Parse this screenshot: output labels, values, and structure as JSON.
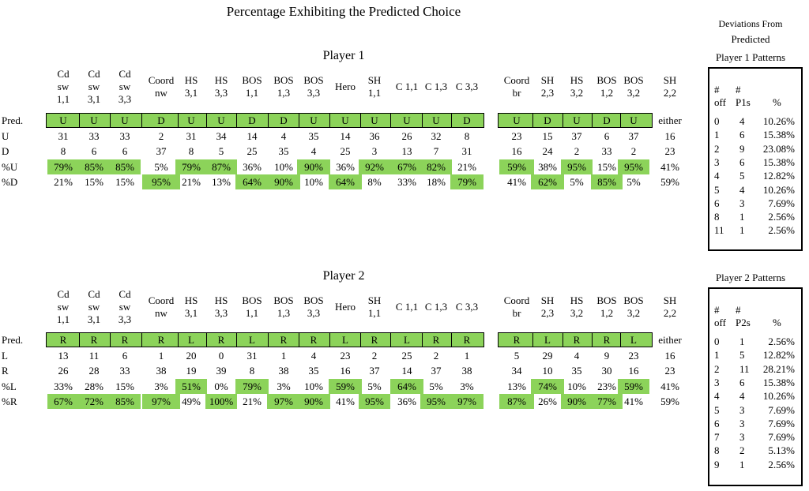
{
  "title": "Percentage Exhibiting the Predicted Choice",
  "columns": [
    {
      "lines": [
        "Cd",
        "sw",
        "1,1"
      ]
    },
    {
      "lines": [
        "Cd",
        "sw",
        "3,1"
      ]
    },
    {
      "lines": [
        "Cd",
        "sw",
        "3,3"
      ]
    },
    {
      "lines": [
        "Coord",
        "nw"
      ]
    },
    {
      "lines": [
        "HS",
        "3,1"
      ]
    },
    {
      "lines": [
        "HS",
        "3,3"
      ]
    },
    {
      "lines": [
        "BOS",
        "1,1"
      ]
    },
    {
      "lines": [
        "BOS",
        "1,3"
      ]
    },
    {
      "lines": [
        "BOS",
        "3,3"
      ]
    },
    {
      "lines": [
        "Hero"
      ]
    },
    {
      "lines": [
        "SH",
        "1,1"
      ]
    },
    {
      "lines": [
        "C 1,1"
      ]
    },
    {
      "lines": [
        "C 1,3"
      ]
    },
    {
      "lines": [
        "C 3,3"
      ]
    },
    {
      "lines": [
        "Coord",
        "br"
      ]
    },
    {
      "lines": [
        "SH",
        "2,3"
      ]
    },
    {
      "lines": [
        "HS",
        "3,2"
      ]
    },
    {
      "lines": [
        "BOS",
        "1,2"
      ]
    },
    {
      "lines": [
        "BOS",
        "3,2"
      ]
    }
  ],
  "either_header": [
    "SH",
    "2,2"
  ],
  "player1": {
    "title": "Player 1",
    "rows": [
      {
        "label": "Pred.",
        "values": [
          "U",
          "U",
          "U",
          "D",
          "U",
          "U",
          "D",
          "D",
          "U",
          "U",
          "U",
          "U",
          "U",
          "D",
          "U",
          "D",
          "U",
          "D",
          "U"
        ],
        "extra": "either"
      },
      {
        "label": "U",
        "values": [
          "31",
          "33",
          "33",
          "2",
          "31",
          "34",
          "14",
          "4",
          "35",
          "14",
          "36",
          "26",
          "32",
          "8",
          "23",
          "15",
          "37",
          "6",
          "37"
        ],
        "extra": "16"
      },
      {
        "label": "D",
        "values": [
          "8",
          "6",
          "6",
          "37",
          "8",
          "5",
          "25",
          "35",
          "4",
          "25",
          "3",
          "13",
          "7",
          "31",
          "16",
          "24",
          "2",
          "33",
          "2"
        ],
        "extra": "23"
      },
      {
        "label": "%U",
        "values": [
          "79%",
          "85%",
          "85%",
          "5%",
          "79%",
          "87%",
          "36%",
          "10%",
          "90%",
          "36%",
          "92%",
          "67%",
          "82%",
          "21%",
          "59%",
          "38%",
          "95%",
          "15%",
          "95%"
        ],
        "extra": "41%",
        "highlight": [
          0,
          1,
          2,
          4,
          5,
          8,
          10,
          11,
          12,
          14,
          16,
          18
        ]
      },
      {
        "label": "%D",
        "values": [
          "21%",
          "15%",
          "15%",
          "95%",
          "21%",
          "13%",
          "64%",
          "90%",
          "10%",
          "64%",
          "8%",
          "33%",
          "18%",
          "79%",
          "41%",
          "62%",
          "5%",
          "85%",
          "5%"
        ],
        "extra": "59%",
        "highlight": [
          3,
          6,
          7,
          9,
          13,
          15,
          17
        ]
      }
    ]
  },
  "player2": {
    "title": "Player 2",
    "rows": [
      {
        "label": "Pred.",
        "values": [
          "R",
          "R",
          "R",
          "R",
          "L",
          "R",
          "L",
          "R",
          "R",
          "L",
          "R",
          "L",
          "R",
          "R",
          "R",
          "L",
          "R",
          "R",
          "L"
        ],
        "extra": "either"
      },
      {
        "label": "L",
        "values": [
          "13",
          "11",
          "6",
          "1",
          "20",
          "0",
          "31",
          "1",
          "4",
          "23",
          "2",
          "25",
          "2",
          "1",
          "5",
          "29",
          "4",
          "9",
          "23"
        ],
        "extra": "16"
      },
      {
        "label": "R",
        "values": [
          "26",
          "28",
          "33",
          "38",
          "19",
          "39",
          "8",
          "38",
          "35",
          "16",
          "37",
          "14",
          "37",
          "38",
          "34",
          "10",
          "35",
          "30",
          "16"
        ],
        "extra": "23"
      },
      {
        "label": "%L",
        "values": [
          "33%",
          "28%",
          "15%",
          "3%",
          "51%",
          "0%",
          "79%",
          "3%",
          "10%",
          "59%",
          "5%",
          "64%",
          "5%",
          "3%",
          "13%",
          "74%",
          "10%",
          "23%",
          "59%"
        ],
        "extra": "41%",
        "highlight": [
          4,
          6,
          9,
          11,
          15,
          18
        ]
      },
      {
        "label": "%R",
        "values": [
          "67%",
          "72%",
          "85%",
          "97%",
          "49%",
          "100%",
          "21%",
          "97%",
          "90%",
          "41%",
          "95%",
          "36%",
          "95%",
          "97%",
          "87%",
          "26%",
          "90%",
          "77%",
          "41%"
        ],
        "extra": "59%",
        "highlight": [
          0,
          1,
          2,
          3,
          5,
          7,
          8,
          10,
          12,
          13,
          14,
          16,
          17
        ]
      }
    ]
  },
  "deviations": {
    "title_line1": "Deviations From",
    "title_line2": "Predicted",
    "p1_title": "Player 1 Patterns",
    "p1_headers": [
      [
        "#",
        "off"
      ],
      [
        "#",
        "P1s"
      ],
      [
        "",
        "%"
      ]
    ],
    "p1_rows": [
      [
        "0",
        "4",
        "10.26%"
      ],
      [
        "1",
        "6",
        "15.38%"
      ],
      [
        "2",
        "9",
        "23.08%"
      ],
      [
        "3",
        "6",
        "15.38%"
      ],
      [
        "4",
        "5",
        "12.82%"
      ],
      [
        "5",
        "4",
        "10.26%"
      ],
      [
        "6",
        "3",
        "7.69%"
      ],
      [
        "8",
        "1",
        "2.56%"
      ],
      [
        "11",
        "1",
        "2.56%"
      ]
    ],
    "p2_title": "Player 2 Patterns",
    "p2_headers": [
      [
        "#",
        "off"
      ],
      [
        "#",
        "P2s"
      ],
      [
        "",
        "%"
      ]
    ],
    "p2_rows": [
      [
        "0",
        "1",
        "2.56%"
      ],
      [
        "1",
        "5",
        "12.82%"
      ],
      [
        "2",
        "11",
        "28.21%"
      ],
      [
        "3",
        "6",
        "15.38%"
      ],
      [
        "4",
        "4",
        "10.26%"
      ],
      [
        "5",
        "3",
        "7.69%"
      ],
      [
        "6",
        "3",
        "7.69%"
      ],
      [
        "7",
        "3",
        "7.69%"
      ],
      [
        "8",
        "2",
        "5.13%"
      ],
      [
        "9",
        "1",
        "2.56%"
      ]
    ]
  }
}
